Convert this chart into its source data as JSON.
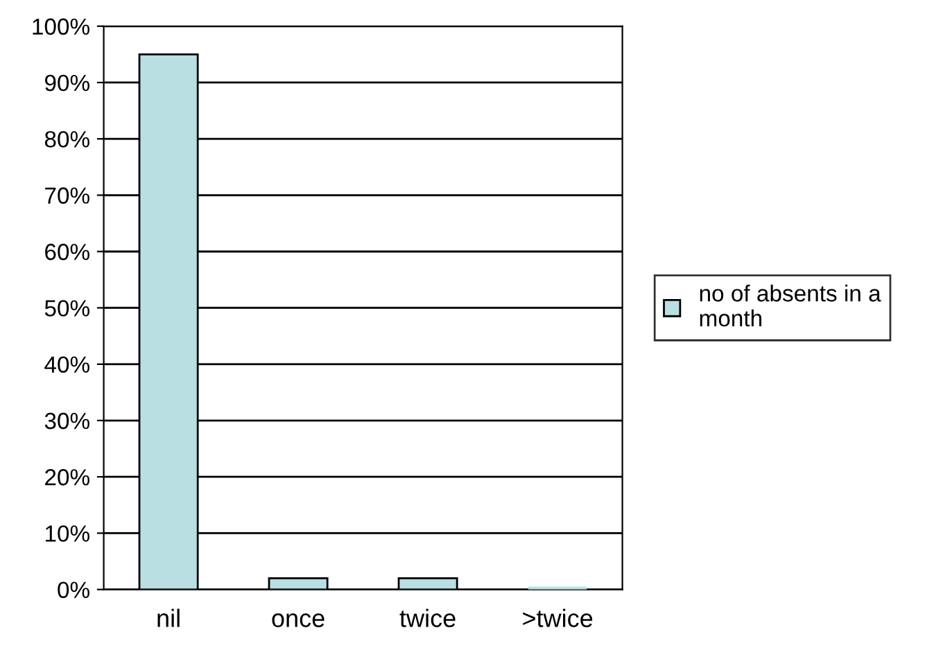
{
  "chart_data": {
    "type": "bar",
    "categories": [
      "nil",
      "once",
      "twice",
      ">twice"
    ],
    "series": [
      {
        "name": "no of absents in a month",
        "color": "#b9dfe3",
        "values": [
          95,
          2,
          2,
          0
        ]
      }
    ],
    "ylim": [
      0,
      100
    ],
    "yticks": [
      {
        "value": 0,
        "label": "0%"
      },
      {
        "value": 10,
        "label": "10%"
      },
      {
        "value": 20,
        "label": "20%"
      },
      {
        "value": 30,
        "label": "30%"
      },
      {
        "value": 40,
        "label": "40%"
      },
      {
        "value": 50,
        "label": "50%"
      },
      {
        "value": 60,
        "label": "60%"
      },
      {
        "value": 70,
        "label": "70%"
      },
      {
        "value": 80,
        "label": "80%"
      },
      {
        "value": 90,
        "label": "90%"
      },
      {
        "value": 100,
        "label": "100%"
      }
    ],
    "grid": "y",
    "legend": "right"
  }
}
